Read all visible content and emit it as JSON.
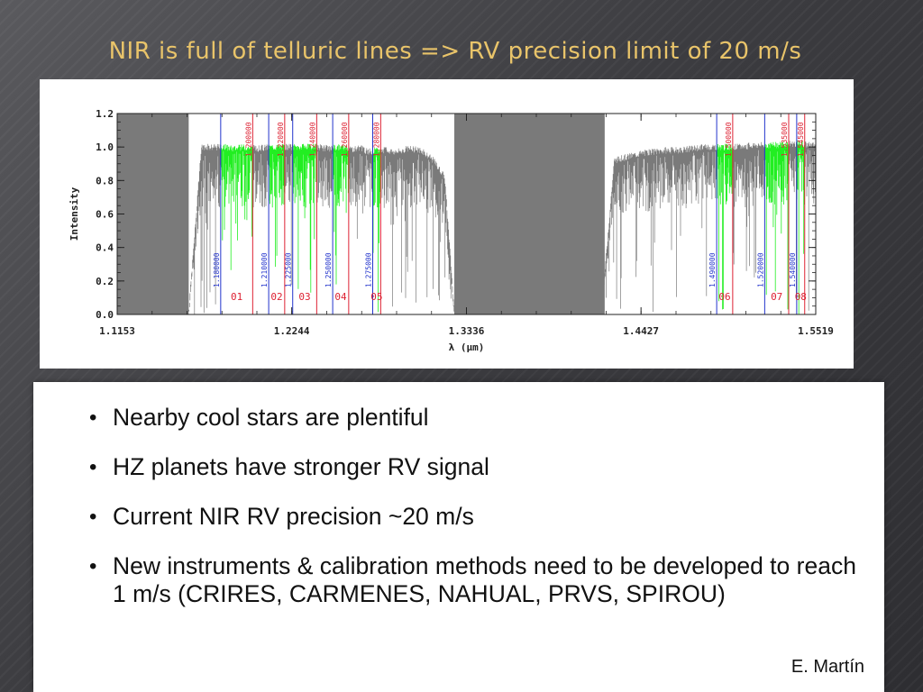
{
  "slide": {
    "title": "NIR is full of telluric lines => RV precision limit of 20 m/s",
    "bullets": [
      "Nearby cool stars are plentiful",
      "HZ planets have stronger RV signal",
      "Current NIR RV precision ~20 m/s",
      "New instruments & calibration methods need to be developed to reach 1 m/s (CRIRES, CARMENES, NAHUAL, PRVS, SPIROU)"
    ],
    "credit": "E. Martín"
  },
  "chart_data": {
    "type": "line",
    "xlabel": "λ (μm)",
    "ylabel": "Intensity",
    "xlim": [
      1.1153,
      1.5519
    ],
    "ylim": [
      0.0,
      1.2
    ],
    "x_ticks": [
      1.1153,
      1.2244,
      1.3336,
      1.4427,
      1.5519
    ],
    "x_tick_labels": [
      "1.1153",
      "1.2244",
      "1.3336",
      "1.4427",
      "1.5519"
    ],
    "y_ticks": [
      0.0,
      0.2,
      0.4,
      0.6,
      0.8,
      1.0,
      1.2
    ],
    "y_tick_labels": [
      "0.0",
      "0.2",
      "0.4",
      "0.6",
      "0.8",
      "1.0",
      "1.2"
    ],
    "spectrum_color": "#7a7a7a",
    "window_color": "#22ee22",
    "series": [
      {
        "color": "#7a7a7a",
        "x": [
          1.1153,
          1.125,
          1.135,
          1.145,
          1.152,
          1.16,
          1.168,
          1.176,
          1.182,
          1.188,
          1.195,
          1.203,
          1.21,
          1.218,
          1.225,
          1.232,
          1.24,
          1.248,
          1.255,
          1.262,
          1.268,
          1.272,
          1.278,
          1.284,
          1.29,
          1.297,
          1.305,
          1.313,
          1.32,
          1.326,
          1.333,
          1.34,
          1.347,
          1.355,
          1.362,
          1.37,
          1.378,
          1.386,
          1.394,
          1.402,
          1.41,
          1.418,
          1.426,
          1.434,
          1.442,
          1.45,
          1.458,
          1.466,
          1.474,
          1.482,
          1.49,
          1.497,
          1.505,
          1.513,
          1.52,
          1.527,
          1.535,
          1.542,
          1.548,
          1.5519
        ],
        "y": [
          0.0,
          0.0,
          0.0,
          0.0,
          0.0,
          0.0,
          0.98,
          0.98,
          0.98,
          0.97,
          0.98,
          0.97,
          0.98,
          0.98,
          0.98,
          0.98,
          0.98,
          0.97,
          0.98,
          0.97,
          0.97,
          0.95,
          0.96,
          0.96,
          0.95,
          0.97,
          0.96,
          0.9,
          0.8,
          0.0,
          0.0,
          0.0,
          0.0,
          0.0,
          0.0,
          0.0,
          0.0,
          0.0,
          0.0,
          0.0,
          0.0,
          0.0,
          0.9,
          0.92,
          0.94,
          0.95,
          0.96,
          0.96,
          0.97,
          0.98,
          0.98,
          0.98,
          0.98,
          0.99,
          0.99,
          0.99,
          1.0,
          1.0,
          0.99,
          0.99
        ]
      }
    ],
    "blue_markers": [
      {
        "x": 1.18,
        "label": "1.180000"
      },
      {
        "x": 1.21,
        "label": "1.210000"
      },
      {
        "x": 1.225,
        "label": "1.225000"
      },
      {
        "x": 1.25,
        "label": "1.250000"
      },
      {
        "x": 1.275,
        "label": "1.275000"
      },
      {
        "x": 1.49,
        "label": "1.490000"
      },
      {
        "x": 1.52,
        "label": "1.520000"
      },
      {
        "x": 1.54,
        "label": "1.540000"
      }
    ],
    "red_markers": [
      {
        "x": 1.2,
        "label": "1.200000"
      },
      {
        "x": 1.22,
        "label": "1.220000"
      },
      {
        "x": 1.24,
        "label": "1.240000"
      },
      {
        "x": 1.26,
        "label": "1.260000"
      },
      {
        "x": 1.28,
        "label": "1.280000"
      },
      {
        "x": 1.5,
        "label": "1.500000"
      },
      {
        "x": 1.535,
        "label": "1.535000"
      },
      {
        "x": 1.545,
        "label": "1.545000"
      }
    ],
    "windows": [
      {
        "label": "01",
        "x0": 1.18,
        "x1": 1.2
      },
      {
        "label": "02",
        "x0": 1.21,
        "x1": 1.22
      },
      {
        "label": "03",
        "x0": 1.225,
        "x1": 1.24
      },
      {
        "label": "04",
        "x0": 1.25,
        "x1": 1.26
      },
      {
        "label": "05",
        "x0": 1.275,
        "x1": 1.28
      },
      {
        "label": "06",
        "x0": 1.49,
        "x1": 1.5
      },
      {
        "label": "07",
        "x0": 1.52,
        "x1": 1.535
      },
      {
        "label": "08",
        "x0": 1.54,
        "x1": 1.545
      }
    ]
  }
}
